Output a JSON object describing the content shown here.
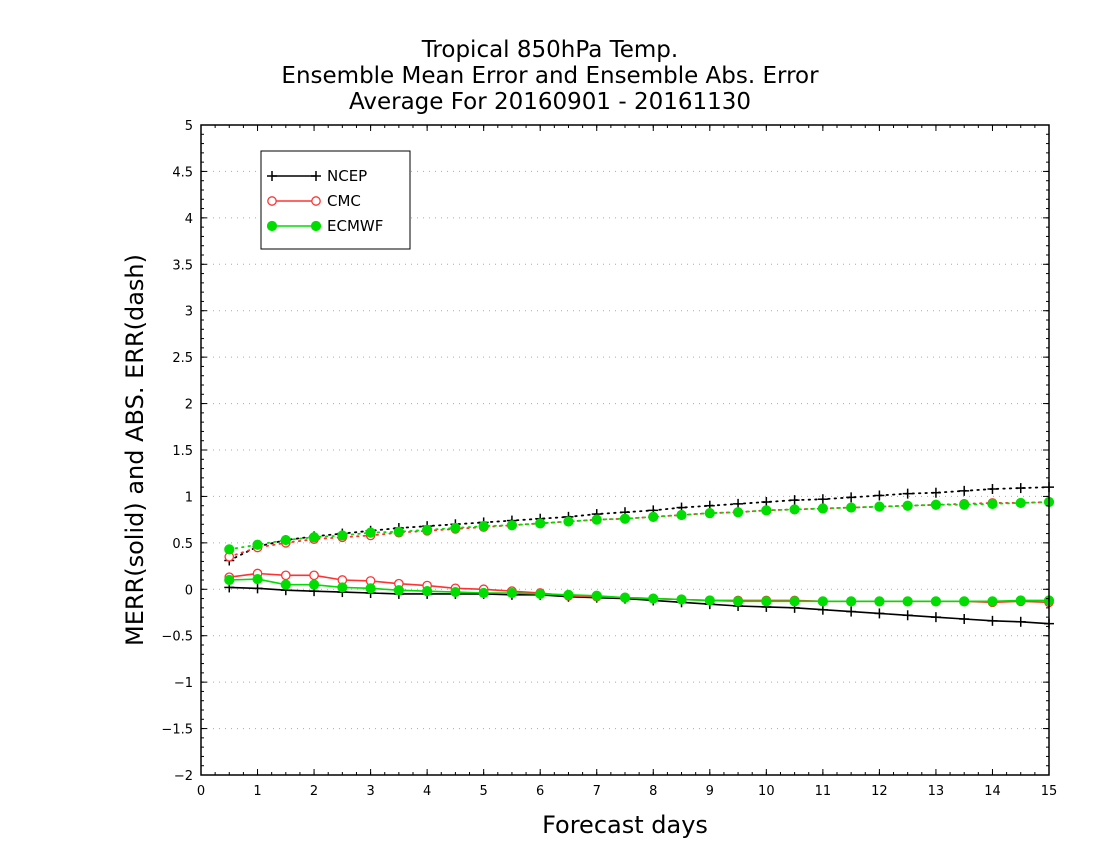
{
  "chart_data": {
    "type": "line",
    "title": [
      "Tropical 850hPa Temp.",
      "Ensemble Mean Error and Ensemble Abs. Error",
      "Average For 20160901 - 20161130"
    ],
    "xlabel": "Forecast days",
    "ylabel": "MERR(solid) and ABS. ERR(dash)",
    "xlim": [
      0,
      15
    ],
    "ylim": [
      -2,
      5
    ],
    "xticks": [
      0,
      1,
      2,
      3,
      4,
      5,
      6,
      7,
      8,
      9,
      10,
      11,
      12,
      13,
      14,
      15
    ],
    "xtick_labels": [
      "0",
      "1",
      "2",
      "3",
      "4",
      "5",
      "6",
      "7",
      "8",
      "9",
      "10",
      "11",
      "12",
      "13",
      "14",
      "15"
    ],
    "yticks": [
      -2,
      -1.5,
      -1,
      -0.5,
      0,
      0.5,
      1,
      1.5,
      2,
      2.5,
      3,
      3.5,
      4,
      4.5,
      5
    ],
    "ytick_labels": [
      "−2",
      "−1.5",
      "−1",
      "−0.5",
      "0",
      "0.5",
      "1",
      "1.5",
      "2",
      "2.5",
      "3",
      "3.5",
      "4",
      "4.5",
      "5"
    ],
    "grid": true,
    "legend_position": "top-left",
    "x": [
      0.5,
      1,
      1.5,
      2,
      2.5,
      3,
      3.5,
      4,
      4.5,
      5,
      5.5,
      6,
      6.5,
      7,
      7.5,
      8,
      8.5,
      9,
      9.5,
      10,
      10.5,
      11,
      11.5,
      12,
      12.5,
      13,
      13.5,
      14,
      14.5,
      15
    ],
    "series": [
      {
        "name": "NCEP",
        "color": "#000000",
        "marker": "plus",
        "mean_error": [
          0.02,
          0.01,
          -0.01,
          -0.02,
          -0.03,
          -0.04,
          -0.05,
          -0.05,
          -0.05,
          -0.05,
          -0.06,
          -0.06,
          -0.08,
          -0.09,
          -0.1,
          -0.12,
          -0.14,
          -0.16,
          -0.18,
          -0.19,
          -0.2,
          -0.22,
          -0.24,
          -0.26,
          -0.28,
          -0.3,
          -0.32,
          -0.34,
          -0.35,
          -0.37
        ],
        "abs_error": [
          0.31,
          0.46,
          0.53,
          0.57,
          0.6,
          0.63,
          0.66,
          0.68,
          0.7,
          0.72,
          0.74,
          0.76,
          0.78,
          0.81,
          0.83,
          0.85,
          0.88,
          0.9,
          0.92,
          0.94,
          0.96,
          0.97,
          0.99,
          1.01,
          1.03,
          1.04,
          1.06,
          1.08,
          1.09,
          1.1
        ]
      },
      {
        "name": "CMC",
        "color": "#ff3333",
        "marker": "open-circle",
        "mean_error": [
          0.13,
          0.17,
          0.15,
          0.15,
          0.1,
          0.09,
          0.06,
          0.04,
          0.01,
          0.0,
          -0.02,
          -0.04,
          -0.07,
          -0.08,
          -0.09,
          -0.1,
          -0.11,
          -0.12,
          -0.12,
          -0.12,
          -0.12,
          -0.13,
          -0.13,
          -0.13,
          -0.13,
          -0.13,
          -0.13,
          -0.14,
          -0.13,
          -0.14
        ],
        "abs_error": [
          0.35,
          0.45,
          0.5,
          0.54,
          0.56,
          0.58,
          0.61,
          0.63,
          0.65,
          0.67,
          0.69,
          0.71,
          0.73,
          0.75,
          0.76,
          0.78,
          0.8,
          0.82,
          0.83,
          0.85,
          0.86,
          0.87,
          0.88,
          0.89,
          0.9,
          0.91,
          0.92,
          0.93,
          0.93,
          0.94
        ]
      },
      {
        "name": "ECMWF",
        "color": "#00dd00",
        "marker": "filled-circle",
        "mean_error": [
          0.1,
          0.11,
          0.05,
          0.05,
          0.02,
          0.01,
          -0.01,
          -0.02,
          -0.03,
          -0.04,
          -0.04,
          -0.05,
          -0.06,
          -0.07,
          -0.09,
          -0.1,
          -0.11,
          -0.12,
          -0.13,
          -0.13,
          -0.13,
          -0.13,
          -0.13,
          -0.13,
          -0.13,
          -0.13,
          -0.13,
          -0.13,
          -0.12,
          -0.12
        ],
        "abs_error": [
          0.43,
          0.48,
          0.53,
          0.56,
          0.58,
          0.61,
          0.62,
          0.64,
          0.66,
          0.68,
          0.69,
          0.71,
          0.73,
          0.75,
          0.76,
          0.78,
          0.8,
          0.82,
          0.83,
          0.85,
          0.86,
          0.87,
          0.88,
          0.89,
          0.9,
          0.91,
          0.91,
          0.92,
          0.93,
          0.94
        ]
      }
    ]
  }
}
